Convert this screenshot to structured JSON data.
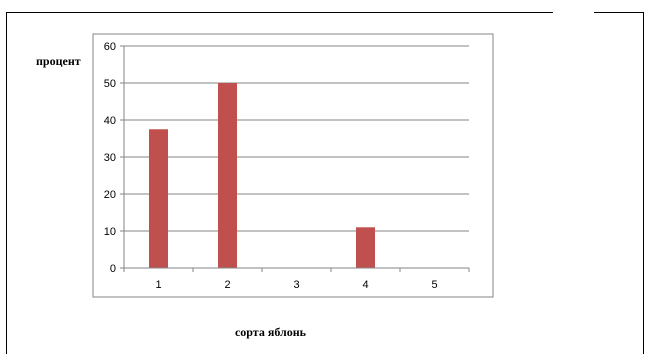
{
  "chart_data": {
    "type": "bar",
    "categories": [
      "1",
      "2",
      "3",
      "4",
      "5"
    ],
    "values": [
      37.5,
      50,
      0,
      11,
      0
    ],
    "xlabel": "сорта яблонь",
    "ylabel": "процент",
    "ylim": [
      0,
      60
    ],
    "yticks": [
      "0",
      "10",
      "20",
      "30",
      "40",
      "50",
      "60"
    ],
    "grid": true,
    "bar_color": "#c0504d",
    "axis_color": "#868686",
    "grid_color": "#868686"
  }
}
